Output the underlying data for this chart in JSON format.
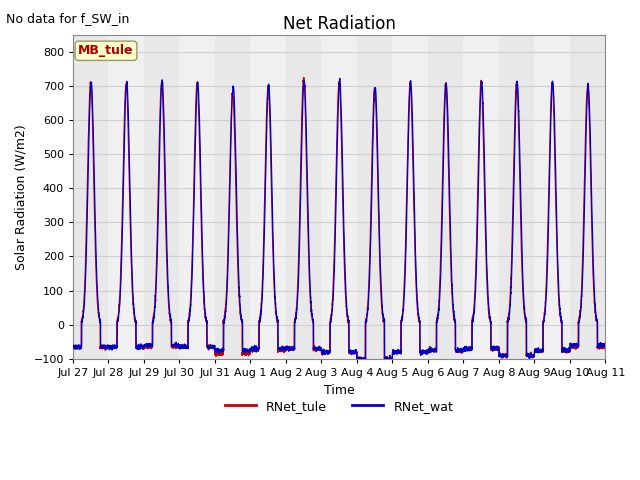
{
  "title": "Net Radiation",
  "top_left_text": "No data for f_SW_in",
  "ylabel": "Solar Radiation (W/m2)",
  "xlabel": "Time",
  "ylim": [
    -100,
    850
  ],
  "yticks": [
    -100,
    0,
    100,
    200,
    300,
    400,
    500,
    600,
    700,
    800
  ],
  "color_tule": "#cc0000",
  "color_wat": "#0000cc",
  "legend_labels": [
    "RNet_tule",
    "RNet_wat"
  ],
  "site_label": "MB_tule",
  "site_label_bg": "#ffffcc",
  "site_label_border": "#999966",
  "n_days": 15,
  "xtick_labels": [
    "Jul 27",
    "Jul 28",
    "Jul 29",
    "Jul 30",
    "Jul 31",
    "Aug 1",
    "Aug 2",
    "Aug 3",
    "Aug 4",
    "Aug 5",
    "Aug 6",
    "Aug 7",
    "Aug 8",
    "Aug 9",
    "Aug 10",
    "Aug 11"
  ],
  "grid_color": "#d0d0d0",
  "plot_bg": "#e8e8e8",
  "fig_bg": "#ffffff",
  "peak_values_tule": [
    710,
    705,
    710,
    708,
    680,
    700,
    723,
    710,
    695,
    705,
    705,
    710,
    710,
    710,
    700
  ],
  "peak_values_wat": [
    710,
    710,
    715,
    708,
    700,
    700,
    715,
    715,
    695,
    710,
    705,
    710,
    710,
    712,
    700
  ],
  "night_values_tule": [
    -65,
    -65,
    -65,
    -65,
    -85,
    -75,
    -70,
    -80,
    -100,
    -80,
    -75,
    -70,
    -90,
    -75,
    -65
  ],
  "night_values_wat": [
    -65,
    -65,
    -60,
    -65,
    -75,
    -70,
    -70,
    -80,
    -100,
    -80,
    -75,
    -70,
    -90,
    -75,
    -60
  ],
  "day_offset_tule": [
    0.35,
    0.35,
    0.35,
    0.35,
    0.35,
    0.35,
    0.35,
    0.35,
    0.35,
    0.35,
    0.35,
    0.35,
    0.35,
    0.35,
    0.35
  ],
  "day_offset_wat": [
    0.36,
    0.36,
    0.36,
    0.36,
    0.36,
    0.36,
    0.36,
    0.36,
    0.36,
    0.36,
    0.36,
    0.36,
    0.36,
    0.36,
    0.36
  ]
}
